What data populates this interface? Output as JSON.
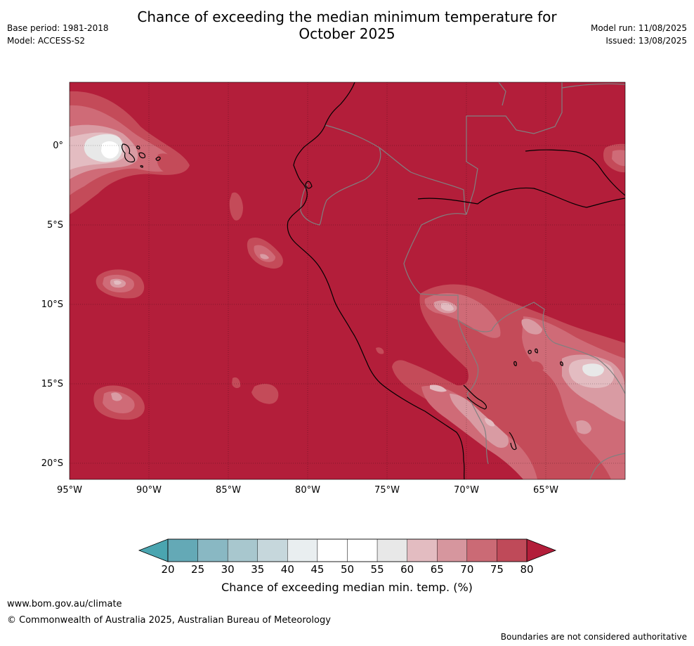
{
  "header": {
    "title_line1": "Chance of exceeding the median minimum temperature for",
    "title_line2": "October 2025",
    "base_period": "Base period: 1981-2018",
    "model": "Model: ACCESS-S2",
    "model_run": "Model run: 11/08/2025",
    "issued": "Issued: 13/08/2025"
  },
  "map": {
    "lat_labels": [
      "0°",
      "5°S",
      "10°S",
      "15°S",
      "20°S"
    ],
    "lon_labels": [
      "95°W",
      "90°W",
      "85°W",
      "80°W",
      "75°W",
      "70°W",
      "65°W"
    ],
    "colors": {
      "c80": "#b31e3a",
      "c75": "#c44b59",
      "c70": "#cf6b77",
      "c65": "#d99ba3",
      "c60": "#e3bcc1",
      "c55": "#e8e8e8",
      "c50": "#ffffff",
      "coast": "#000000",
      "border": "#808080"
    }
  },
  "colorbar": {
    "ticks": [
      "20",
      "25",
      "30",
      "35",
      "40",
      "45",
      "50",
      "55",
      "60",
      "65",
      "70",
      "75",
      "80"
    ],
    "colors": [
      "#64a9b6",
      "#89b8c3",
      "#a8c7ce",
      "#c6d7dc",
      "#e9eef0",
      "#ffffff",
      "#ffffff",
      "#e8e8e8",
      "#e3bcc1",
      "#d6969e",
      "#cb6a75",
      "#bf4a59"
    ],
    "low_color": "#4aa5b0",
    "high_color": "#b31e3a",
    "label": "Chance of exceeding median min. temp. (%)"
  },
  "footer": {
    "url": "www.bom.gov.au/climate",
    "copyright": "© Commonwealth of Australia 2025, Australian Bureau of Meteorology",
    "disclaimer": "Boundaries are not considered authoritative"
  }
}
